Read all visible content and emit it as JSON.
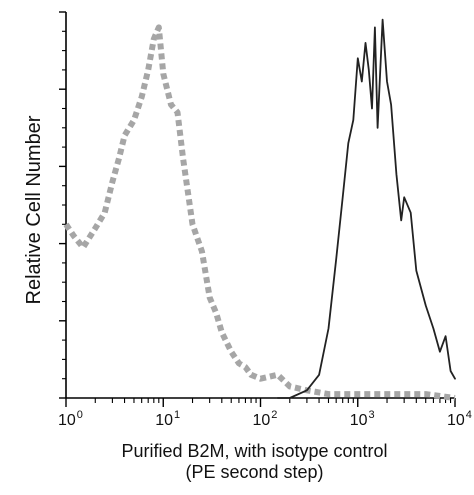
{
  "chart_data": {
    "type": "line",
    "xlabel": "Purified B2M, with isotype control",
    "xlabel_line2": "(PE second step)",
    "ylabel": "Relative Cell Number",
    "x_scale": "log",
    "xlim": [
      1,
      10000
    ],
    "ylim": [
      0,
      1
    ],
    "x_ticks": [
      {
        "base": "10",
        "exp": "0"
      },
      {
        "base": "10",
        "exp": "1"
      },
      {
        "base": "10",
        "exp": "2"
      },
      {
        "base": "10",
        "exp": "3"
      },
      {
        "base": "10",
        "exp": "4"
      }
    ],
    "series": [
      {
        "style": "dashed",
        "color": "#a6a6a6",
        "x": [
          1,
          1.2,
          1.5,
          2,
          2.5,
          3,
          3.5,
          4,
          5,
          6,
          7,
          8,
          9,
          10,
          12,
          14,
          16,
          20,
          25,
          30,
          35,
          40,
          50,
          60,
          70,
          80,
          100,
          150,
          200,
          300,
          500,
          1000,
          2000,
          5000,
          10000
        ],
        "y": [
          0.45,
          0.42,
          0.39,
          0.44,
          0.48,
          0.56,
          0.62,
          0.68,
          0.72,
          0.78,
          0.85,
          0.93,
          0.96,
          0.84,
          0.76,
          0.74,
          0.62,
          0.45,
          0.38,
          0.26,
          0.22,
          0.17,
          0.12,
          0.09,
          0.08,
          0.06,
          0.05,
          0.06,
          0.03,
          0.02,
          0.01,
          0.01,
          0.01,
          0.01,
          0.0
        ]
      },
      {
        "style": "solid",
        "color": "#222222",
        "x": [
          150,
          200,
          300,
          400,
          500,
          600,
          700,
          800,
          900,
          1000,
          1100,
          1200,
          1300,
          1400,
          1500,
          1600,
          1800,
          2000,
          2200,
          2500,
          2800,
          3000,
          3500,
          4000,
          5000,
          6000,
          7000,
          8000,
          9000,
          10000
        ],
        "y": [
          0.0,
          0.0,
          0.02,
          0.06,
          0.18,
          0.36,
          0.52,
          0.66,
          0.72,
          0.88,
          0.82,
          0.92,
          0.85,
          0.75,
          0.96,
          0.7,
          0.98,
          0.82,
          0.76,
          0.58,
          0.46,
          0.52,
          0.48,
          0.33,
          0.24,
          0.18,
          0.12,
          0.16,
          0.07,
          0.05
        ]
      }
    ],
    "grid": false,
    "legend": "none"
  }
}
